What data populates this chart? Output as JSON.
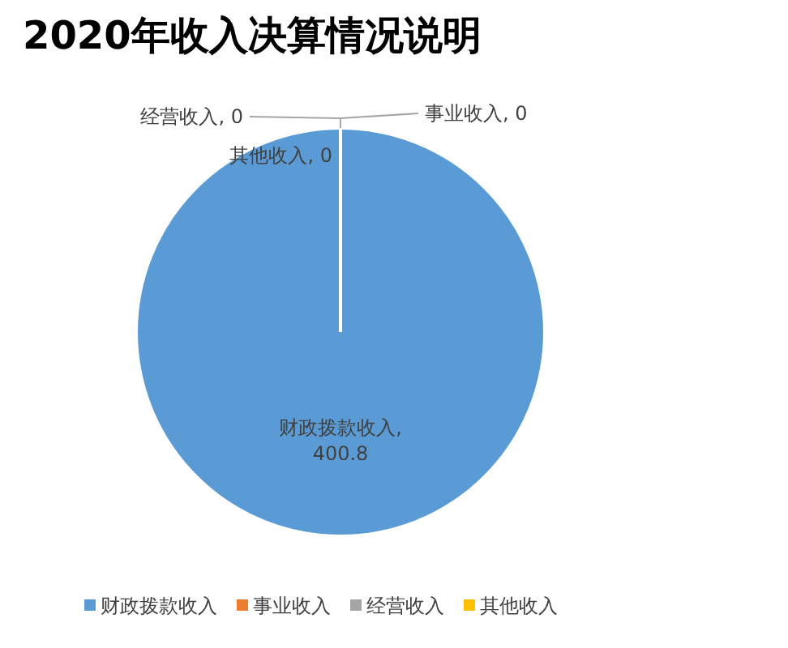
{
  "chart_data": {
    "type": "pie",
    "title": "2020年收入决算情况说明",
    "categories": [
      "财政拨款收入",
      "事业收入",
      "经营收入",
      "其他收入"
    ],
    "values": [
      400.8,
      0,
      0,
      0
    ],
    "value_labels": [
      "财政拨款收入, 400.8",
      "事业收入, 0",
      "经营收入, 0",
      "其他收入, 0"
    ],
    "colors": [
      "#5b9bd5",
      "#ed7d31",
      "#a5a5a5",
      "#ffc000"
    ],
    "legend": "bottom"
  }
}
